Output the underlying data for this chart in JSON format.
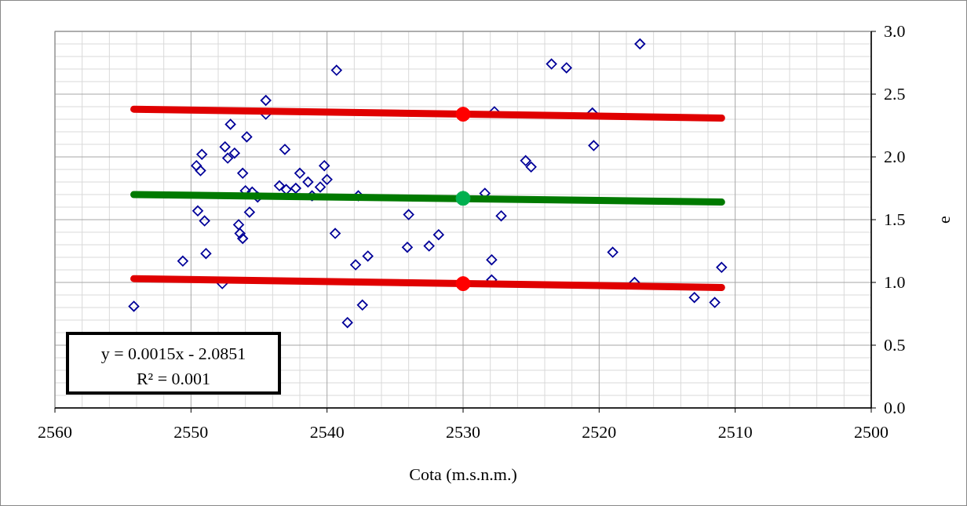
{
  "chart_data": {
    "type": "scatter",
    "xlabel": "Cota (m.s.n.m.)",
    "ylabel": "e",
    "xlim": [
      2560,
      2500
    ],
    "ylim": [
      0,
      3
    ],
    "xticks": [
      2560,
      2550,
      2540,
      2530,
      2520,
      2510,
      2500
    ],
    "yticks": [
      {
        "value": 0,
        "label": "0.0"
      },
      {
        "value": 0.5,
        "label": "0.5"
      },
      {
        "value": 1,
        "label": "1.0"
      },
      {
        "value": 1.5,
        "label": "1.5"
      },
      {
        "value": 2,
        "label": "2.0"
      },
      {
        "value": 2.5,
        "label": "2.5"
      },
      {
        "value": 3,
        "label": "3.0"
      }
    ],
    "grid": true,
    "annotations": [
      "y = 0.0015x - 2.0851",
      "R² = 0.001"
    ],
    "series": [
      {
        "marker": "diamond",
        "color": "#000099",
        "x": [
          2554.2,
          2550.6,
          2549.6,
          2549.5,
          2549.3,
          2549.2,
          2549.0,
          2548.9,
          2547.7,
          2547.5,
          2547.3,
          2547.1,
          2546.8,
          2546.5,
          2546.4,
          2546.2,
          2546.2,
          2546.0,
          2545.9,
          2545.7,
          2545.5,
          2545.1,
          2544.5,
          2544.5,
          2543.5,
          2543.1,
          2543.0,
          2542.3,
          2542.0,
          2541.4,
          2541.1,
          2540.5,
          2540.2,
          2540.0,
          2539.4,
          2539.3,
          2538.5,
          2537.9,
          2537.7,
          2537.4,
          2537.0,
          2534.1,
          2534.0,
          2532.5,
          2531.8,
          2528.4,
          2527.9,
          2527.9,
          2527.7,
          2527.2,
          2525.4,
          2525.0,
          2523.5,
          2522.4,
          2520.5,
          2520.4,
          2519.0,
          2517.4,
          2517.0,
          2513.0,
          2511.5,
          2511.0
        ],
        "values": [
          0.81,
          1.17,
          1.93,
          1.57,
          1.89,
          2.02,
          1.49,
          1.23,
          0.99,
          2.08,
          1.99,
          2.26,
          2.03,
          1.46,
          1.39,
          1.87,
          1.35,
          1.73,
          2.16,
          1.56,
          1.72,
          1.68,
          2.45,
          2.34,
          1.77,
          2.06,
          1.74,
          1.75,
          1.87,
          1.8,
          1.69,
          1.76,
          1.93,
          1.82,
          1.39,
          2.69,
          0.68,
          1.14,
          1.69,
          0.82,
          1.21,
          1.28,
          1.54,
          1.29,
          1.38,
          1.71,
          1.18,
          1.02,
          2.36,
          1.53,
          1.97,
          1.92,
          2.74,
          2.71,
          2.35,
          2.09,
          1.24,
          1.0,
          2.9,
          0.88,
          0.84,
          1.12
        ]
      },
      {
        "type": "line",
        "marker": "none",
        "color": "#e00000",
        "x": [
          2554.2,
          2511.0
        ],
        "values": [
          2.38,
          2.31
        ]
      },
      {
        "type": "line",
        "marker": "none",
        "color": "#e00000",
        "x": [
          2554.2,
          2511.0
        ],
        "values": [
          1.03,
          0.96
        ]
      },
      {
        "type": "line",
        "marker": "none",
        "color": "#007a00",
        "x": [
          2554.2,
          2511.0
        ],
        "values": [
          1.7,
          1.64
        ]
      },
      {
        "marker": "circle",
        "color": "#ff0000",
        "x": [
          2530,
          2530
        ],
        "values": [
          2.34,
          0.99
        ]
      },
      {
        "marker": "circle",
        "color": "#00b050",
        "x": [
          2530
        ],
        "values": [
          1.67
        ]
      }
    ]
  }
}
